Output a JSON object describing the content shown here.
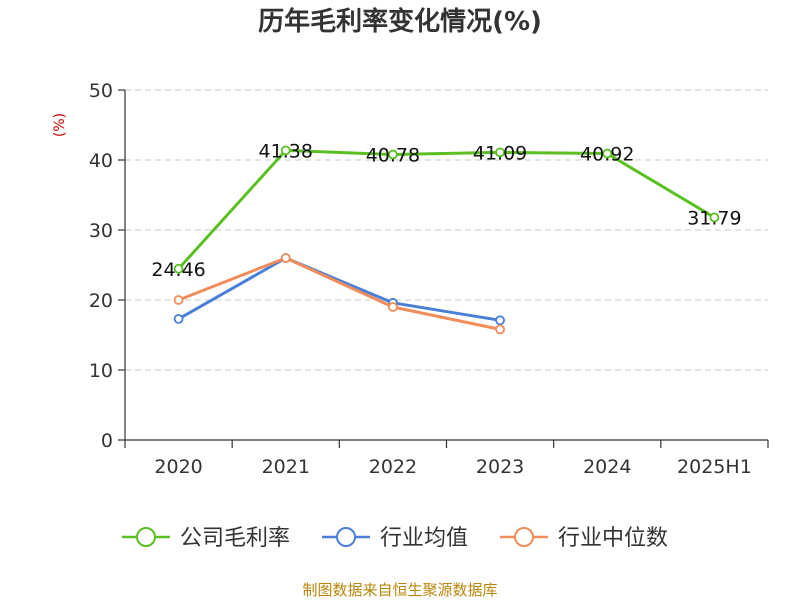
{
  "chart_data": {
    "type": "line",
    "title": "历年毛利率变化情况(%)",
    "ylabel": "(%)",
    "categories": [
      "2020",
      "2021",
      "2022",
      "2023",
      "2024",
      "2025H1"
    ],
    "yticks": [
      "0",
      "10",
      "20",
      "30",
      "40",
      "50"
    ],
    "ylim": [
      0,
      50
    ],
    "grid": "horizontal dashed",
    "legend_position": "bottom",
    "series": [
      {
        "name": "公司毛利率",
        "color": "#5bbf21",
        "values": [
          24.46,
          41.38,
          40.78,
          41.09,
          40.92,
          31.79
        ],
        "labels": [
          "24.46",
          "41.38",
          "40.78",
          "41.09",
          "40.92",
          "31.79"
        ]
      },
      {
        "name": "行业均值",
        "color": "#4a7fd8",
        "values": [
          17.3,
          26.0,
          19.6,
          17.1,
          null,
          null
        ]
      },
      {
        "name": "行业中位数",
        "color": "#f08c5a",
        "values": [
          20.0,
          26.0,
          19.0,
          15.8,
          null,
          null
        ]
      }
    ]
  },
  "footer": {
    "source": "制图数据来自恒生聚源数据库"
  }
}
